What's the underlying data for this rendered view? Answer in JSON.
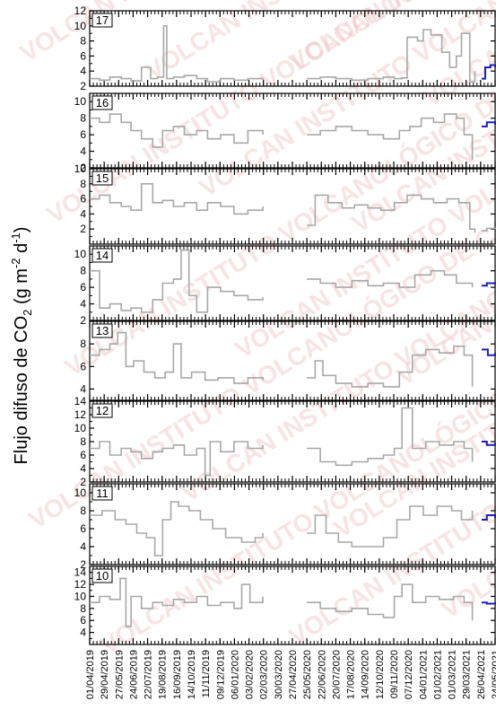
{
  "ylabel": "Flujo difuso de CO2 (g m-2 d-1)",
  "ylabel_parts": {
    "main": "Flujo difuso de CO",
    "sub": "2",
    "mid": " (g m",
    "sup1": "-2",
    "mid2": " d",
    "sup2": "-1",
    "end": ")"
  },
  "watermark": "VOLCAN INSTITUTO VOLCANOLÓGICO DE CANARIAS",
  "date_ticks": [
    "01/04/2019",
    "29/04/2019",
    "27/05/2019",
    "24/06/2019",
    "22/07/2019",
    "19/08/2019",
    "16/09/2019",
    "14/10/2019",
    "11/11/2019",
    "09/12/2019",
    "06/01/2020",
    "03/02/2020",
    "02/03/2020",
    "30/03/2020",
    "27/04/2020",
    "25/05/2020",
    "22/06/2020",
    "20/07/2020",
    "17/08/2020",
    "14/09/2020",
    "12/10/2020",
    "09/11/2020",
    "07/12/2020",
    "04/01/2021",
    "01/02/2021",
    "01/03/2021",
    "29/03/2021",
    "26/04/2021",
    "24/05/2021"
  ],
  "colors": {
    "main_series": "#a8a8a8",
    "recent_series": "#1f1fb4",
    "axis": "#000000",
    "watermark": "#e9b3b3"
  },
  "chart_data": [
    {
      "type": "line",
      "station": "17",
      "ylim": [
        2,
        12
      ],
      "yticks": [
        2,
        4,
        6,
        8,
        10,
        12
      ],
      "series": [
        {
          "x": [
            "2019-04-01",
            "2019-04-20",
            "2019-05-10",
            "2019-06-01",
            "2019-06-20",
            "2019-07-10",
            "2019-07-28",
            "2019-08-10",
            "2019-08-22",
            "2019-08-28",
            "2019-09-10",
            "2019-10-01",
            "2019-10-25",
            "2019-11-15",
            "2019-12-10",
            "2020-01-05",
            "2020-02-01",
            "2020-03-01"
          ],
          "y": [
            3,
            2.8,
            3.2,
            3,
            2.7,
            4.5,
            3,
            3.2,
            10,
            3,
            3.2,
            3.4,
            3,
            2.6,
            3,
            2.8,
            3,
            2.8
          ]
        },
        {
          "x": [
            "2020-05-25",
            "2020-06-20",
            "2020-07-20",
            "2020-08-20",
            "2020-09-20",
            "2020-10-20",
            "2020-11-10",
            "2020-11-25",
            "2020-12-05",
            "2020-12-25",
            "2021-01-05",
            "2021-01-20",
            "2021-02-10",
            "2021-02-25",
            "2021-03-10",
            "2021-03-20",
            "2021-04-05",
            "2021-04-15"
          ],
          "y": [
            3,
            3.2,
            3,
            2.8,
            3,
            3.2,
            3,
            3.1,
            8.5,
            8,
            9.5,
            8.8,
            6.5,
            4.5,
            6,
            9,
            2.6,
            4
          ]
        },
        {
          "x": [
            "2021-04-28",
            "2021-05-05",
            "2021-05-15",
            "2021-05-24"
          ],
          "y": [
            3,
            4.5,
            4.8,
            4.5
          ],
          "recent": true
        }
      ]
    },
    {
      "type": "line",
      "station": "16",
      "ylim": [
        2,
        11
      ],
      "yticks": [
        2,
        4,
        6,
        8,
        10
      ],
      "series": [
        {
          "x": [
            "2019-04-01",
            "2019-04-20",
            "2019-05-10",
            "2019-06-01",
            "2019-06-20",
            "2019-07-10",
            "2019-08-01",
            "2019-08-20",
            "2019-09-10",
            "2019-10-01",
            "2019-10-25",
            "2019-11-15",
            "2019-12-10",
            "2020-01-05",
            "2020-02-01",
            "2020-03-01"
          ],
          "y": [
            8,
            7.5,
            8.5,
            7.5,
            6.5,
            5.5,
            4.5,
            6.5,
            7,
            6,
            6.5,
            5.5,
            6,
            5,
            6.5,
            6
          ]
        },
        {
          "x": [
            "2020-05-25",
            "2020-06-20",
            "2020-07-20",
            "2020-08-20",
            "2020-09-20",
            "2020-10-20",
            "2020-11-20",
            "2020-12-10",
            "2021-01-01",
            "2021-01-25",
            "2021-02-15",
            "2021-03-10",
            "2021-03-25",
            "2021-04-10"
          ],
          "y": [
            6,
            6.5,
            7,
            6.5,
            6,
            5.5,
            6.5,
            7,
            8,
            7.5,
            8.5,
            8,
            6,
            3
          ]
        },
        {
          "x": [
            "2021-04-28",
            "2021-05-08",
            "2021-05-24"
          ],
          "y": [
            7,
            7.5,
            7.2
          ],
          "recent": true
        }
      ]
    },
    {
      "type": "line",
      "station": "15",
      "ylim": [
        0,
        10
      ],
      "yticks": [
        2,
        4,
        6,
        8,
        10
      ],
      "series": [
        {
          "x": [
            "2019-04-01",
            "2019-04-20",
            "2019-05-10",
            "2019-06-01",
            "2019-06-20",
            "2019-07-10",
            "2019-08-01",
            "2019-08-20",
            "2019-09-10",
            "2019-10-01",
            "2019-10-25",
            "2019-11-15",
            "2019-12-10",
            "2020-01-05",
            "2020-02-01",
            "2020-03-01"
          ],
          "y": [
            6,
            6.5,
            5.5,
            5,
            4.5,
            8,
            5.5,
            5.8,
            5,
            5.5,
            4.5,
            5.5,
            5,
            4,
            4.5,
            5
          ]
        },
        {
          "x": [
            "2020-05-25",
            "2020-06-10",
            "2020-07-05",
            "2020-08-01",
            "2020-08-25",
            "2020-09-20",
            "2020-10-15",
            "2020-11-10",
            "2020-12-05",
            "2021-01-01",
            "2021-01-25",
            "2021-02-20",
            "2021-03-15",
            "2021-04-05",
            "2021-04-15"
          ],
          "y": [
            2.5,
            6.5,
            5.5,
            4.8,
            5.2,
            4.8,
            4.5,
            5.5,
            6.5,
            6,
            5.5,
            6,
            5.5,
            2,
            1.5
          ]
        },
        {
          "x": [
            "2021-04-28",
            "2021-05-08",
            "2021-05-24"
          ],
          "y": [
            1.8,
            2.1,
            2
          ]
        }
      ]
    },
    {
      "type": "line",
      "station": "14",
      "ylim": [
        2,
        11
      ],
      "yticks": [
        2,
        4,
        6,
        8,
        10
      ],
      "series": [
        {
          "x": [
            "2019-04-01",
            "2019-04-20",
            "2019-05-10",
            "2019-06-01",
            "2019-06-20",
            "2019-07-10",
            "2019-08-01",
            "2019-08-20",
            "2019-09-10",
            "2019-09-25",
            "2019-10-10",
            "2019-10-25",
            "2019-11-15",
            "2019-12-10",
            "2020-01-05",
            "2020-02-01",
            "2020-03-01"
          ],
          "y": [
            8,
            3.5,
            4,
            3.2,
            3.5,
            3,
            4.5,
            6.5,
            7,
            10.5,
            5,
            3,
            6,
            5.5,
            5,
            4.5,
            4.8
          ]
        },
        {
          "x": [
            "2020-05-25",
            "2020-06-20",
            "2020-07-20",
            "2020-08-20",
            "2020-09-20",
            "2020-10-20",
            "2020-11-20",
            "2020-12-20",
            "2021-01-20",
            "2021-02-15",
            "2021-03-10",
            "2021-04-10"
          ],
          "y": [
            7,
            6.5,
            6,
            6.8,
            6.2,
            6.5,
            6,
            7.5,
            8,
            7.5,
            6.5,
            6
          ]
        },
        {
          "x": [
            "2021-04-28",
            "2021-05-08",
            "2021-05-24"
          ],
          "y": [
            6.2,
            6.5,
            6.3
          ],
          "recent": true
        }
      ]
    },
    {
      "type": "line",
      "station": "13",
      "ylim": [
        3,
        10
      ],
      "yticks": [
        4,
        6,
        8
      ],
      "series": [
        {
          "x": [
            "2019-04-01",
            "2019-04-20",
            "2019-05-10",
            "2019-05-25",
            "2019-06-10",
            "2019-06-25",
            "2019-07-15",
            "2019-08-05",
            "2019-08-25",
            "2019-09-10",
            "2019-09-25",
            "2019-10-15",
            "2019-11-10",
            "2019-12-05",
            "2020-01-05",
            "2020-02-01",
            "2020-03-01"
          ],
          "y": [
            7,
            7.5,
            8,
            9,
            6,
            6.5,
            5.5,
            5,
            5.5,
            8,
            5,
            5.5,
            4.8,
            5,
            4.5,
            5,
            4.8
          ]
        },
        {
          "x": [
            "2020-05-25",
            "2020-06-10",
            "2020-06-25",
            "2020-07-20",
            "2020-08-20",
            "2020-09-20",
            "2020-10-20",
            "2020-11-20",
            "2020-12-15",
            "2021-01-10",
            "2021-02-05",
            "2021-03-05",
            "2021-03-25",
            "2021-04-10"
          ],
          "y": [
            5,
            6.5,
            5.2,
            4.5,
            4.2,
            4.5,
            4.2,
            5.5,
            7,
            7.5,
            7.2,
            7.8,
            7,
            4.2
          ]
        },
        {
          "x": [
            "2021-04-28",
            "2021-05-10",
            "2021-05-24"
          ],
          "y": [
            7.5,
            7,
            7.2
          ],
          "recent": true
        }
      ]
    },
    {
      "type": "line",
      "station": "12",
      "ylim": [
        2,
        14
      ],
      "yticks": [
        2,
        4,
        6,
        8,
        10,
        12,
        14
      ],
      "series": [
        {
          "x": [
            "2019-04-01",
            "2019-04-20",
            "2019-05-10",
            "2019-06-01",
            "2019-06-20",
            "2019-07-10",
            "2019-08-01",
            "2019-08-20",
            "2019-09-10",
            "2019-10-01",
            "2019-10-25",
            "2019-11-10",
            "2019-11-20",
            "2019-12-10",
            "2020-01-05",
            "2020-02-01",
            "2020-03-01"
          ],
          "y": [
            7,
            8,
            6,
            7,
            6.5,
            5.5,
            6.5,
            7,
            7.5,
            6,
            7,
            3,
            8,
            6.5,
            8,
            7,
            7.5
          ]
        },
        {
          "x": [
            "2020-05-25",
            "2020-06-20",
            "2020-07-20",
            "2020-08-20",
            "2020-09-20",
            "2020-10-20",
            "2020-11-10",
            "2020-11-25",
            "2020-12-15",
            "2021-01-10",
            "2021-02-05",
            "2021-03-05",
            "2021-03-25",
            "2021-04-10"
          ],
          "y": [
            7,
            5,
            4.5,
            5,
            5.5,
            6,
            7,
            13,
            7,
            8,
            7.5,
            8,
            7,
            5
          ]
        },
        {
          "x": [
            "2021-04-28",
            "2021-05-08",
            "2021-05-24"
          ],
          "y": [
            8,
            7.5,
            7.8
          ],
          "recent": true
        }
      ]
    },
    {
      "type": "line",
      "station": "11",
      "ylim": [
        2,
        11
      ],
      "yticks": [
        2,
        4,
        6,
        8,
        10
      ],
      "series": [
        {
          "x": [
            "2019-04-01",
            "2019-04-25",
            "2019-05-20",
            "2019-06-10",
            "2019-07-01",
            "2019-07-20",
            "2019-08-05",
            "2019-08-20",
            "2019-09-05",
            "2019-09-20",
            "2019-10-10",
            "2019-11-01",
            "2019-11-25",
            "2019-12-20",
            "2020-01-20",
            "2020-02-15",
            "2020-03-01"
          ],
          "y": [
            7.5,
            8,
            7,
            6.5,
            5.5,
            5,
            3,
            7,
            9,
            8.5,
            8,
            7,
            6,
            5,
            4.5,
            5,
            5.5
          ]
        },
        {
          "x": [
            "2020-05-25",
            "2020-06-10",
            "2020-07-01",
            "2020-07-25",
            "2020-08-20",
            "2020-09-20",
            "2020-10-20",
            "2020-11-15",
            "2020-12-10",
            "2021-01-05",
            "2021-02-01",
            "2021-03-01",
            "2021-03-20",
            "2021-04-10"
          ],
          "y": [
            5.5,
            7.5,
            5.5,
            4.5,
            4,
            4,
            5,
            7,
            8.5,
            7.5,
            8.5,
            8,
            7,
            8
          ]
        },
        {
          "x": [
            "2021-04-28",
            "2021-05-08",
            "2021-05-24"
          ],
          "y": [
            7,
            7.5,
            7.2
          ],
          "recent": true
        }
      ]
    },
    {
      "type": "line",
      "station": "10",
      "ylim": [
        2,
        15
      ],
      "yticks": [
        4,
        6,
        8,
        10,
        12,
        14
      ],
      "series": [
        {
          "x": [
            "2019-04-01",
            "2019-04-20",
            "2019-05-10",
            "2019-05-30",
            "2019-06-10",
            "2019-06-20",
            "2019-07-10",
            "2019-08-01",
            "2019-08-20",
            "2019-09-10",
            "2019-10-01",
            "2019-10-25",
            "2019-11-15",
            "2019-12-10",
            "2020-01-05",
            "2020-01-20",
            "2020-02-05",
            "2020-03-01"
          ],
          "y": [
            9,
            10,
            9.5,
            13,
            5,
            10,
            8,
            9,
            8.5,
            9.5,
            9,
            10,
            8.5,
            9,
            8,
            12,
            9,
            10
          ]
        },
        {
          "x": [
            "2020-05-25",
            "2020-06-20",
            "2020-07-20",
            "2020-08-20",
            "2020-09-20",
            "2020-10-20",
            "2020-11-10",
            "2020-11-25",
            "2020-12-15",
            "2021-01-10",
            "2021-02-05",
            "2021-03-05",
            "2021-03-25",
            "2021-04-10"
          ],
          "y": [
            9,
            8,
            7.5,
            8,
            7,
            6.5,
            10,
            12,
            9,
            10,
            9.5,
            10,
            9,
            6
          ]
        },
        {
          "x": [
            "2021-04-28",
            "2021-05-08",
            "2021-05-24"
          ],
          "y": [
            9,
            8.8,
            9
          ],
          "recent": true
        }
      ]
    }
  ]
}
